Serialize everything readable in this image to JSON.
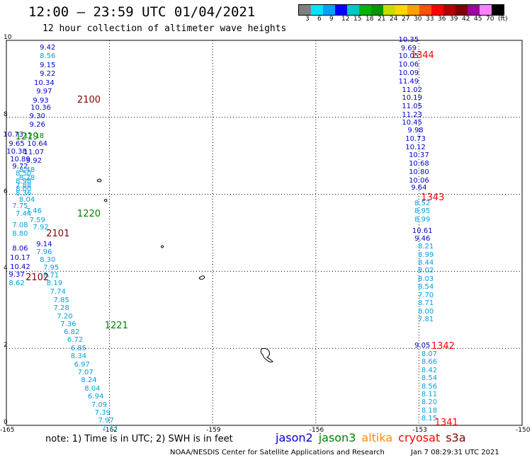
{
  "header": {
    "title": "12:00 – 23:59 UTC 01/04/2021",
    "subtitle": "12 hour collection of altimeter wave heights"
  },
  "colorbar": {
    "colors": [
      "#808080",
      "#00e5ff",
      "#00a0ff",
      "#0000ff",
      "#00c8c8",
      "#00b400",
      "#009600",
      "#c8dc00",
      "#ffd700",
      "#ffa000",
      "#ff5000",
      "#ff0000",
      "#b40000",
      "#800000",
      "#a000a0",
      "#ff80ff",
      "#000000"
    ],
    "labels": [
      "3",
      "6",
      "9",
      "12",
      "15",
      "18",
      "21",
      "24",
      "27",
      "30",
      "33",
      "36",
      "39",
      "42",
      "45",
      "70",
      "(ft)"
    ]
  },
  "axes": {
    "x_ticks": [
      "-165",
      "-162",
      "-159",
      "-156",
      "-153",
      "-150"
    ],
    "y_ticks": [
      "0",
      "2",
      "4",
      "6",
      "8",
      "10"
    ]
  },
  "chart_data": {
    "type": "scatter",
    "xlim": [
      -165,
      -150
    ],
    "ylim": [
      0,
      10
    ],
    "grid": true,
    "track_labels": [
      {
        "text": "2100",
        "lon": -162.6,
        "lat": 8.46,
        "color": "#800000"
      },
      {
        "text": "1219",
        "lon": -164.4,
        "lat": 7.5,
        "color": "#008000"
      },
      {
        "text": "1220",
        "lon": -162.6,
        "lat": 5.5,
        "color": "#008000"
      },
      {
        "text": "2101",
        "lon": -163.5,
        "lat": 4.98,
        "color": "#800000"
      },
      {
        "text": "2102",
        "lon": -164.1,
        "lat": 3.85,
        "color": "#800000"
      },
      {
        "text": "1221",
        "lon": -161.8,
        "lat": 2.59,
        "color": "#008000"
      },
      {
        "text": "1344",
        "lon": -152.9,
        "lat": 9.62,
        "color": "#ff0000"
      },
      {
        "text": "1343",
        "lon": -152.6,
        "lat": 5.92,
        "color": "#ff0000"
      },
      {
        "text": "1342",
        "lon": -152.3,
        "lat": 2.05,
        "color": "#ff0000"
      },
      {
        "text": "1341",
        "lon": -152.2,
        "lat": 0.07,
        "color": "#ff0000"
      }
    ],
    "series": [
      {
        "name": "jason2",
        "color": "#0000cc",
        "points": [
          {
            "v": "9.42",
            "lon": -163.8,
            "lat": 9.8
          },
          {
            "v": "9.15",
            "lon": -163.8,
            "lat": 9.34
          },
          {
            "v": "9.22",
            "lon": -163.8,
            "lat": 9.11
          },
          {
            "v": "10.34",
            "lon": -163.9,
            "lat": 8.88
          },
          {
            "v": "9.97",
            "lon": -163.9,
            "lat": 8.65
          },
          {
            "v": "9.93",
            "lon": -164.0,
            "lat": 8.42
          },
          {
            "v": "10.36",
            "lon": -164.0,
            "lat": 8.23
          },
          {
            "v": "9.30",
            "lon": -164.1,
            "lat": 8.02
          },
          {
            "v": "9.26",
            "lon": -164.1,
            "lat": 7.8
          },
          {
            "v": "10.73",
            "lon": -164.8,
            "lat": 7.53
          },
          {
            "v": "10.64",
            "lon": -164.1,
            "lat": 7.3
          },
          {
            "v": "9.65",
            "lon": -164.7,
            "lat": 7.3
          },
          {
            "v": "10.38",
            "lon": -164.7,
            "lat": 7.09
          },
          {
            "v": "11.07",
            "lon": -164.2,
            "lat": 7.07
          },
          {
            "v": "10.89",
            "lon": -164.6,
            "lat": 6.9
          },
          {
            "v": "9.92",
            "lon": -164.2,
            "lat": 6.85
          },
          {
            "v": "9.72",
            "lon": -164.6,
            "lat": 6.71
          },
          {
            "v": "9.14",
            "lon": -163.9,
            "lat": 4.68
          },
          {
            "v": "8.06",
            "lon": -164.6,
            "lat": 4.58
          },
          {
            "v": "10.17",
            "lon": -164.6,
            "lat": 4.33
          },
          {
            "v": "10.42",
            "lon": -164.6,
            "lat": 4.1
          },
          {
            "v": "9.37",
            "lon": -164.7,
            "lat": 3.89
          },
          {
            "v": "10.35",
            "lon": -153.3,
            "lat": 10.0
          },
          {
            "v": "9.69",
            "lon": -153.3,
            "lat": 9.78
          },
          {
            "v": "10.05",
            "lon": -153.3,
            "lat": 9.58
          },
          {
            "v": "10.06",
            "lon": -153.3,
            "lat": 9.35
          },
          {
            "v": "10.09",
            "lon": -153.3,
            "lat": 9.13
          },
          {
            "v": "11.49",
            "lon": -153.3,
            "lat": 8.91
          },
          {
            "v": "11.02",
            "lon": -153.2,
            "lat": 8.7
          },
          {
            "v": "10.19",
            "lon": -153.2,
            "lat": 8.49
          },
          {
            "v": "11.05",
            "lon": -153.2,
            "lat": 8.27
          },
          {
            "v": "11.23",
            "lon": -153.2,
            "lat": 8.06
          },
          {
            "v": "10.45",
            "lon": -153.2,
            "lat": 7.85
          },
          {
            "v": "9.98",
            "lon": -153.1,
            "lat": 7.64
          },
          {
            "v": "10.73",
            "lon": -153.1,
            "lat": 7.43
          },
          {
            "v": "10.12",
            "lon": -153.1,
            "lat": 7.21
          },
          {
            "v": "10.37",
            "lon": -153.0,
            "lat": 7.0
          },
          {
            "v": "10.68",
            "lon": -153.0,
            "lat": 6.79
          },
          {
            "v": "10.80",
            "lon": -153.0,
            "lat": 6.57
          },
          {
            "v": "10.06",
            "lon": -153.0,
            "lat": 6.35
          },
          {
            "v": "9.64",
            "lon": -153.0,
            "lat": 6.15
          },
          {
            "v": "10.61",
            "lon": -152.9,
            "lat": 5.04
          },
          {
            "v": "9.46",
            "lon": -152.9,
            "lat": 4.84
          },
          {
            "v": "9.05",
            "lon": -152.9,
            "lat": 2.05
          }
        ]
      },
      {
        "name": "jason3",
        "color": "#008000",
        "points": [
          {
            "v": "12.18",
            "lon": -164.2,
            "lat": 7.5
          }
        ]
      },
      {
        "name": "altika",
        "color": "#ff8c00",
        "points": []
      },
      {
        "name": "cryosat",
        "color": "#ff0000",
        "points": []
      },
      {
        "name": "s3a",
        "color": "#800000",
        "points": []
      },
      {
        "name": "",
        "color": "#00a0e0",
        "points": [
          {
            "v": "8.56",
            "lon": -163.8,
            "lat": 9.57
          },
          {
            "v": "8.48",
            "lon": -164.4,
            "lat": 6.62
          },
          {
            "v": "8.50",
            "lon": -164.5,
            "lat": 6.52
          },
          {
            "v": "8.28",
            "lon": -164.4,
            "lat": 6.42
          },
          {
            "v": "8.98",
            "lon": -164.5,
            "lat": 6.32
          },
          {
            "v": "7.88",
            "lon": -164.5,
            "lat": 6.22
          },
          {
            "v": "8.00",
            "lon": -164.5,
            "lat": 6.12
          },
          {
            "v": "8.36",
            "lon": -164.5,
            "lat": 6.02
          },
          {
            "v": "8.04",
            "lon": -164.4,
            "lat": 5.85
          },
          {
            "v": "7.75",
            "lon": -164.6,
            "lat": 5.68
          },
          {
            "v": "7.46",
            "lon": -164.2,
            "lat": 5.55
          },
          {
            "v": "7.44",
            "lon": -164.5,
            "lat": 5.48
          },
          {
            "v": "7.59",
            "lon": -164.1,
            "lat": 5.32
          },
          {
            "v": "7.08",
            "lon": -164.6,
            "lat": 5.18
          },
          {
            "v": "7.92",
            "lon": -164.0,
            "lat": 5.12
          },
          {
            "v": "8.80",
            "lon": -164.6,
            "lat": 4.97
          },
          {
            "v": "7.96",
            "lon": -163.9,
            "lat": 4.48
          },
          {
            "v": "8.30",
            "lon": -163.8,
            "lat": 4.28
          },
          {
            "v": "7.95",
            "lon": -163.7,
            "lat": 4.08
          },
          {
            "v": "8.71",
            "lon": -163.7,
            "lat": 3.87
          },
          {
            "v": "8.62",
            "lon": -164.7,
            "lat": 3.68
          },
          {
            "v": "8.19",
            "lon": -163.6,
            "lat": 3.67
          },
          {
            "v": "7.74",
            "lon": -163.5,
            "lat": 3.45
          },
          {
            "v": "7.85",
            "lon": -163.4,
            "lat": 3.24
          },
          {
            "v": "7.28",
            "lon": -163.4,
            "lat": 3.03
          },
          {
            "v": "7.20",
            "lon": -163.3,
            "lat": 2.82
          },
          {
            "v": "7.36",
            "lon": -163.2,
            "lat": 2.61
          },
          {
            "v": "6.82",
            "lon": -163.1,
            "lat": 2.4
          },
          {
            "v": "6.72",
            "lon": -163.0,
            "lat": 2.2
          },
          {
            "v": "6.85",
            "lon": -162.9,
            "lat": 1.99
          },
          {
            "v": "8.34",
            "lon": -162.9,
            "lat": 1.78
          },
          {
            "v": "6.97",
            "lon": -162.8,
            "lat": 1.57
          },
          {
            "v": "7.07",
            "lon": -162.7,
            "lat": 1.36
          },
          {
            "v": "8.24",
            "lon": -162.6,
            "lat": 1.15
          },
          {
            "v": "8.04",
            "lon": -162.5,
            "lat": 0.94
          },
          {
            "v": "6.94",
            "lon": -162.4,
            "lat": 0.73
          },
          {
            "v": "7.09",
            "lon": -162.3,
            "lat": 0.52
          },
          {
            "v": "7.39",
            "lon": -162.2,
            "lat": 0.31
          },
          {
            "v": "7.97",
            "lon": -162.1,
            "lat": 0.11
          },
          {
            "v": "7.73",
            "lon": -162.0,
            "lat": -0.1
          },
          {
            "v": "8.52",
            "lon": -152.9,
            "lat": 5.76
          },
          {
            "v": "8.95",
            "lon": -152.9,
            "lat": 5.55
          },
          {
            "v": "8.99",
            "lon": -152.9,
            "lat": 5.34
          },
          {
            "v": "8.21",
            "lon": -152.8,
            "lat": 4.63
          },
          {
            "v": "8.99",
            "lon": -152.8,
            "lat": 4.42
          },
          {
            "v": "8.44",
            "lon": -152.8,
            "lat": 4.21
          },
          {
            "v": "8.02",
            "lon": -152.8,
            "lat": 4.0
          },
          {
            "v": "8.03",
            "lon": -152.8,
            "lat": 3.79
          },
          {
            "v": "8.54",
            "lon": -152.8,
            "lat": 3.58
          },
          {
            "v": "7.70",
            "lon": -152.8,
            "lat": 3.37
          },
          {
            "v": "8.71",
            "lon": -152.8,
            "lat": 3.16
          },
          {
            "v": "8.00",
            "lon": -152.8,
            "lat": 2.95
          },
          {
            "v": "7.81",
            "lon": -152.8,
            "lat": 2.74
          },
          {
            "v": "8.07",
            "lon": -152.7,
            "lat": 1.84
          },
          {
            "v": "8.66",
            "lon": -152.7,
            "lat": 1.63
          },
          {
            "v": "8.42",
            "lon": -152.7,
            "lat": 1.42
          },
          {
            "v": "8.54",
            "lon": -152.7,
            "lat": 1.21
          },
          {
            "v": "8.56",
            "lon": -152.7,
            "lat": 1.0
          },
          {
            "v": "8.11",
            "lon": -152.7,
            "lat": 0.79
          },
          {
            "v": "8.20",
            "lon": -152.7,
            "lat": 0.58
          },
          {
            "v": "8.18",
            "lon": -152.7,
            "lat": 0.37
          },
          {
            "v": "8.15",
            "lon": -152.7,
            "lat": 0.16
          }
        ]
      }
    ]
  },
  "footer": {
    "note": "note:  1) Time is in UTC;  2) SWH is in feet",
    "credit": "NOAA/NESDIS Center for Satellite Applications and Research",
    "generated": "Jan  7 08:29:31 UTC 2021"
  }
}
